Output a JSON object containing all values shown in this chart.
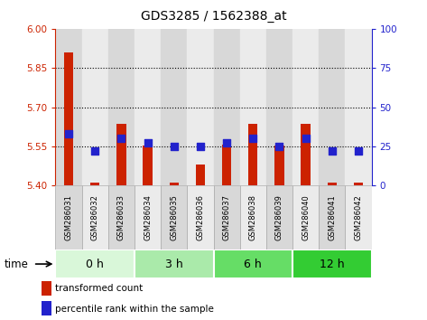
{
  "title": "GDS3285 / 1562388_at",
  "samples": [
    "GSM286031",
    "GSM286032",
    "GSM286033",
    "GSM286034",
    "GSM286035",
    "GSM286036",
    "GSM286037",
    "GSM286038",
    "GSM286039",
    "GSM286040",
    "GSM286041",
    "GSM286042"
  ],
  "transformed_count": [
    5.91,
    5.41,
    5.635,
    5.555,
    5.41,
    5.48,
    5.558,
    5.635,
    5.555,
    5.635,
    5.41,
    5.41
  ],
  "percentile_rank": [
    33,
    22,
    30,
    27,
    25,
    25,
    27,
    30,
    25,
    30,
    22,
    22
  ],
  "ylim_left": [
    5.4,
    6.0
  ],
  "ylim_right": [
    0,
    100
  ],
  "yticks_left": [
    5.4,
    5.55,
    5.7,
    5.85,
    6.0
  ],
  "yticks_right": [
    0,
    25,
    50,
    75,
    100
  ],
  "groups": [
    {
      "label": "0 h",
      "start": 0,
      "end": 3,
      "color": "#d9f7d9"
    },
    {
      "label": "3 h",
      "start": 3,
      "end": 6,
      "color": "#aaeaaa"
    },
    {
      "label": "6 h",
      "start": 6,
      "end": 9,
      "color": "#66dd66"
    },
    {
      "label": "12 h",
      "start": 9,
      "end": 12,
      "color": "#33cc33"
    }
  ],
  "bar_color": "#cc2200",
  "dot_color": "#2222cc",
  "bar_width": 0.35,
  "dot_size": 28,
  "grid_dotted_color": "#333333",
  "left_axis_color": "#cc2200",
  "right_axis_color": "#2222cc",
  "col_bg_even": "#d8d8d8",
  "col_bg_odd": "#ebebeb",
  "time_label": "time"
}
